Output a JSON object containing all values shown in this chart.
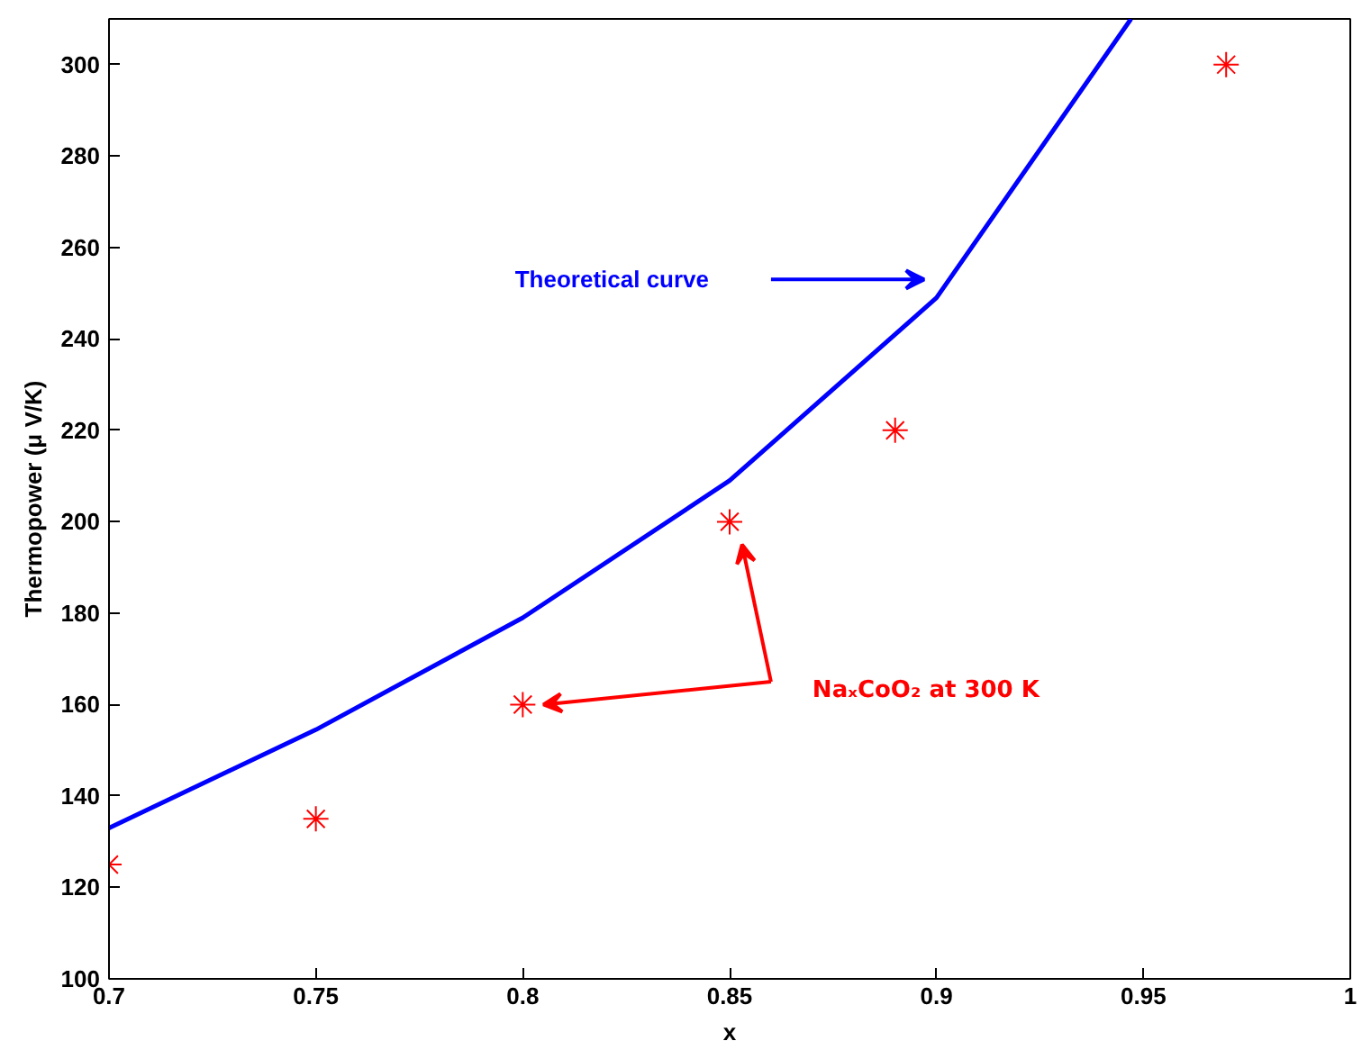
{
  "chart_data": {
    "type": "line",
    "xlabel": "x",
    "ylabel": "Thermopower (μ V/K)",
    "xlim": [
      0.7,
      1.0
    ],
    "ylim": [
      100,
      310
    ],
    "xticks": [
      0.7,
      0.75,
      0.8,
      0.85,
      0.9,
      0.95,
      1
    ],
    "yticks": [
      100,
      120,
      140,
      160,
      180,
      200,
      220,
      240,
      260,
      280,
      300
    ],
    "grid": false,
    "series": [
      {
        "color": "#0000ff",
        "line_style": "solid",
        "marker": "none",
        "x": [
          0.7,
          0.75,
          0.8,
          0.85,
          0.9,
          0.947
        ],
        "values": [
          133,
          154.5,
          179,
          209,
          249,
          310
        ]
      },
      {
        "type": "scatter",
        "color": "#ff0000",
        "marker": "cross",
        "x": [
          0.7,
          0.75,
          0.8,
          0.85,
          0.89,
          0.97
        ],
        "values": [
          125,
          135,
          160,
          200,
          220,
          300
        ]
      }
    ],
    "annotations": [
      "Theoretical curve",
      "NaₓCoO₂ at 300 K"
    ]
  }
}
